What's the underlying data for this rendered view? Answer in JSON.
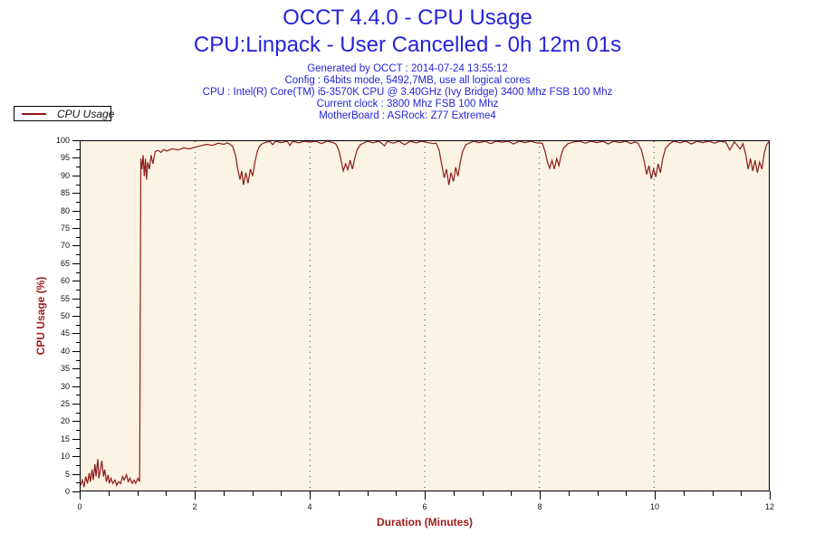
{
  "header": {
    "title": "OCCT 4.4.0 - CPU Usage",
    "subtitle": "CPU:Linpack - User Cancelled - 0h 12m 01s",
    "info_lines": [
      "Generated by OCCT : 2014-07-24 13:55:12",
      "Config : 64bits mode, 5492,7MB, use all logical cores",
      "CPU : Intel(R) Core(TM) i5-3570K CPU @ 3.40GHz (Ivy Bridge) 3400 Mhz FSB 100 Mhz",
      "Current clock : 3800 Mhz FSB 100 Mhz",
      "MotherBoard : ASRock: Z77 Extreme4"
    ]
  },
  "legend": {
    "label": "CPU Usage"
  },
  "colors": {
    "title_blue": "#2424d9",
    "line_maroon": "#8e1b1b",
    "axis_title_maroon": "#9e1a1a",
    "plot_background": "#fbf3e3",
    "gridline": "#3c3c3c",
    "tick_text": "#111111"
  },
  "chart_data": {
    "type": "line",
    "title": "OCCT 4.4.0 - CPU Usage",
    "subtitle": "CPU:Linpack - User Cancelled - 0h 12m 01s",
    "xlabel": "Duration (Minutes)",
    "ylabel": "CPU Usage (%)",
    "xlim": [
      0,
      12
    ],
    "ylim": [
      0,
      100
    ],
    "x_tick_values": [
      0,
      2,
      4,
      6,
      8,
      10,
      12
    ],
    "x_minor_step": 0.5,
    "y_tick_values": [
      0,
      5,
      10,
      15,
      20,
      25,
      30,
      35,
      40,
      45,
      50,
      55,
      60,
      65,
      70,
      75,
      80,
      85,
      90,
      95,
      100
    ],
    "y_minor_step": 2.5,
    "gridlines_x": [
      2,
      4,
      6,
      8,
      10
    ],
    "grid_style": "dotted-vertical",
    "legend_position": "top-left-outside",
    "series": [
      {
        "name": "CPU Usage",
        "color": "#8e1b1b",
        "points": [
          [
            0,
            1.5
          ],
          [
            0.03,
            3
          ],
          [
            0.06,
            1
          ],
          [
            0.09,
            4
          ],
          [
            0.12,
            2
          ],
          [
            0.15,
            5
          ],
          [
            0.17,
            2.5
          ],
          [
            0.2,
            6
          ],
          [
            0.22,
            3
          ],
          [
            0.25,
            7.5
          ],
          [
            0.27,
            4
          ],
          [
            0.3,
            9
          ],
          [
            0.32,
            3.5
          ],
          [
            0.35,
            6.5
          ],
          [
            0.37,
            8.5
          ],
          [
            0.4,
            4
          ],
          [
            0.42,
            6
          ],
          [
            0.45,
            2.5
          ],
          [
            0.48,
            4.5
          ],
          [
            0.5,
            2
          ],
          [
            0.53,
            3.5
          ],
          [
            0.56,
            2
          ],
          [
            0.6,
            3
          ],
          [
            0.63,
            1.5
          ],
          [
            0.66,
            2.5
          ],
          [
            0.7,
            2
          ],
          [
            0.73,
            4
          ],
          [
            0.76,
            3
          ],
          [
            0.8,
            4.5
          ],
          [
            0.83,
            2.5
          ],
          [
            0.86,
            3.5
          ],
          [
            0.9,
            2
          ],
          [
            0.93,
            3
          ],
          [
            0.96,
            2
          ],
          [
            1,
            3.5
          ],
          [
            1.03,
            2.5
          ],
          [
            1.05,
            95
          ],
          [
            1.07,
            92
          ],
          [
            1.09,
            96
          ],
          [
            1.11,
            90
          ],
          [
            1.13,
            95
          ],
          [
            1.15,
            89
          ],
          [
            1.17,
            94
          ],
          [
            1.2,
            92
          ],
          [
            1.23,
            96
          ],
          [
            1.26,
            93.5
          ],
          [
            1.3,
            97
          ],
          [
            1.35,
            97.4
          ],
          [
            1.4,
            96.8
          ],
          [
            1.45,
            97.6
          ],
          [
            1.5,
            97.2
          ],
          [
            1.6,
            97.8
          ],
          [
            1.7,
            97.5
          ],
          [
            1.8,
            98.1
          ],
          [
            1.9,
            97.8
          ],
          [
            2,
            98.3
          ],
          [
            2.1,
            98.7
          ],
          [
            2.2,
            99.1
          ],
          [
            2.3,
            98.8
          ],
          [
            2.4,
            99.4
          ],
          [
            2.5,
            99.1
          ],
          [
            2.55,
            99.5
          ],
          [
            2.6,
            99.2
          ],
          [
            2.65,
            98.5
          ],
          [
            2.7,
            96
          ],
          [
            2.74,
            92
          ],
          [
            2.78,
            89
          ],
          [
            2.81,
            91.5
          ],
          [
            2.84,
            87.5
          ],
          [
            2.88,
            91
          ],
          [
            2.92,
            88
          ],
          [
            2.96,
            92
          ],
          [
            3,
            90
          ],
          [
            3.04,
            94
          ],
          [
            3.08,
            97
          ],
          [
            3.12,
            98.5
          ],
          [
            3.16,
            99.2
          ],
          [
            3.2,
            99.5
          ],
          [
            3.3,
            100
          ],
          [
            3.35,
            99
          ],
          [
            3.4,
            100
          ],
          [
            3.5,
            99.6
          ],
          [
            3.6,
            100
          ],
          [
            3.65,
            98.8
          ],
          [
            3.7,
            100
          ],
          [
            3.8,
            99.5
          ],
          [
            3.9,
            100
          ],
          [
            4,
            99.7
          ],
          [
            4.1,
            100
          ],
          [
            4.2,
            99.3
          ],
          [
            4.3,
            100
          ],
          [
            4.4,
            99.6
          ],
          [
            4.45,
            99.2
          ],
          [
            4.5,
            97.5
          ],
          [
            4.55,
            94
          ],
          [
            4.58,
            91.5
          ],
          [
            4.62,
            93.5
          ],
          [
            4.66,
            91.8
          ],
          [
            4.7,
            94.5
          ],
          [
            4.74,
            92
          ],
          [
            4.78,
            95
          ],
          [
            4.82,
            97.5
          ],
          [
            4.88,
            99
          ],
          [
            4.95,
            99.6
          ],
          [
            5,
            100
          ],
          [
            5.1,
            99.5
          ],
          [
            5.2,
            100
          ],
          [
            5.3,
            98.7
          ],
          [
            5.35,
            100
          ],
          [
            5.45,
            99.4
          ],
          [
            5.55,
            100
          ],
          [
            5.65,
            99
          ],
          [
            5.75,
            100
          ],
          [
            5.85,
            99.5
          ],
          [
            5.95,
            100
          ],
          [
            6.05,
            99.6
          ],
          [
            6.15,
            99.3
          ],
          [
            6.2,
            99.4
          ],
          [
            6.25,
            97.5
          ],
          [
            6.3,
            93
          ],
          [
            6.34,
            89.5
          ],
          [
            6.38,
            92
          ],
          [
            6.42,
            87.5
          ],
          [
            6.46,
            91
          ],
          [
            6.5,
            88.5
          ],
          [
            6.54,
            92.5
          ],
          [
            6.58,
            90
          ],
          [
            6.62,
            94
          ],
          [
            6.66,
            97
          ],
          [
            6.72,
            99
          ],
          [
            6.85,
            100
          ],
          [
            6.95,
            99.6
          ],
          [
            7.05,
            100
          ],
          [
            7.15,
            99.3
          ],
          [
            7.25,
            100
          ],
          [
            7.35,
            99.7
          ],
          [
            7.45,
            100
          ],
          [
            7.55,
            99.2
          ],
          [
            7.65,
            100
          ],
          [
            7.75,
            99.6
          ],
          [
            7.85,
            100
          ],
          [
            7.95,
            99.5
          ],
          [
            8.05,
            99.4
          ],
          [
            8.1,
            97
          ],
          [
            8.14,
            94
          ],
          [
            8.18,
            92.3
          ],
          [
            8.22,
            94.5
          ],
          [
            8.26,
            92
          ],
          [
            8.3,
            95
          ],
          [
            8.34,
            93
          ],
          [
            8.38,
            96
          ],
          [
            8.42,
            98
          ],
          [
            8.5,
            99.3
          ],
          [
            8.6,
            99.8
          ],
          [
            8.7,
            100
          ],
          [
            8.8,
            99.4
          ],
          [
            8.9,
            100
          ],
          [
            9,
            99.6
          ],
          [
            9.1,
            100
          ],
          [
            9.2,
            99.2
          ],
          [
            9.3,
            100
          ],
          [
            9.4,
            99.6
          ],
          [
            9.5,
            100
          ],
          [
            9.6,
            99.3
          ],
          [
            9.66,
            99.8
          ],
          [
            9.72,
            99.4
          ],
          [
            9.78,
            97.5
          ],
          [
            9.83,
            94
          ],
          [
            9.87,
            90.5
          ],
          [
            9.91,
            93
          ],
          [
            9.95,
            89.2
          ],
          [
            9.99,
            92
          ],
          [
            10.03,
            89.8
          ],
          [
            10.07,
            93.5
          ],
          [
            10.11,
            91
          ],
          [
            10.15,
            95
          ],
          [
            10.2,
            98
          ],
          [
            10.28,
            99.4
          ],
          [
            10.35,
            100
          ],
          [
            10.45,
            99.5
          ],
          [
            10.55,
            100
          ],
          [
            10.65,
            99.2
          ],
          [
            10.75,
            100
          ],
          [
            10.85,
            99.6
          ],
          [
            10.95,
            100
          ],
          [
            11.05,
            99.4
          ],
          [
            11.15,
            100
          ],
          [
            11.25,
            99.7
          ],
          [
            11.32,
            97.5
          ],
          [
            11.4,
            99.8
          ],
          [
            11.5,
            97.8
          ],
          [
            11.55,
            99.3
          ],
          [
            11.6,
            96
          ],
          [
            11.64,
            92
          ],
          [
            11.68,
            95
          ],
          [
            11.72,
            91.5
          ],
          [
            11.76,
            94.5
          ],
          [
            11.8,
            91
          ],
          [
            11.84,
            94
          ],
          [
            11.88,
            92
          ],
          [
            11.92,
            96.5
          ],
          [
            11.96,
            99
          ],
          [
            12,
            99.8
          ]
        ]
      }
    ]
  }
}
